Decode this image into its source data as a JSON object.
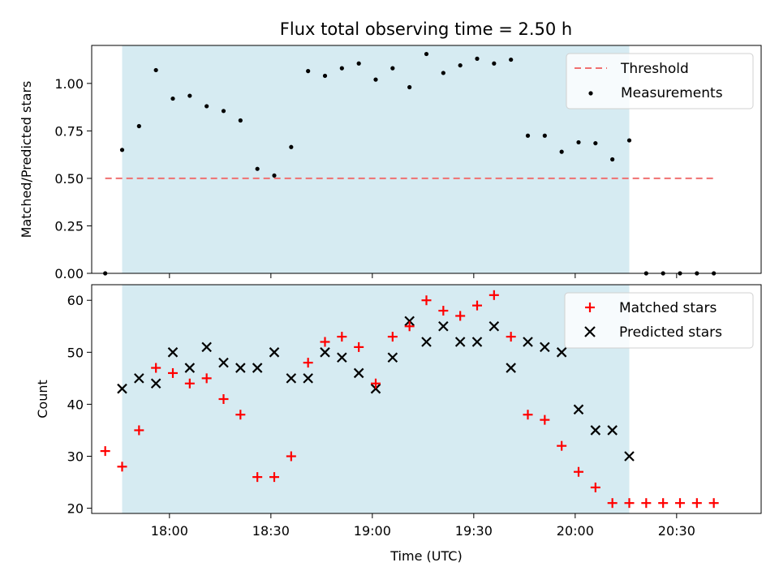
{
  "chart_data": [
    {
      "type": "scatter",
      "title": "Flux total observing time = 2.50 h",
      "ylabel": "Matched/Predicted stars",
      "xlabel": "",
      "xlim": [
        "17:37",
        "20:55"
      ],
      "ylim": [
        0.0,
        1.2
      ],
      "yticks": [
        "0.00",
        "0.25",
        "0.50",
        "0.75",
        "1.00"
      ],
      "xticks": [
        "18:00",
        "18:30",
        "19:00",
        "19:30",
        "20:00",
        "20:30"
      ],
      "shaded_interval": [
        "17:46",
        "20:16"
      ],
      "threshold": {
        "name": "Threshold",
        "value": 0.5,
        "x_range": [
          "17:41",
          "20:41"
        ],
        "color": "#f07070"
      },
      "legend_position": "top-right",
      "series": [
        {
          "name": "Measurements",
          "color": "#000000",
          "x": [
            "17:41",
            "17:46",
            "17:51",
            "17:56",
            "18:01",
            "18:06",
            "18:11",
            "18:16",
            "18:21",
            "18:26",
            "18:31",
            "18:36",
            "18:41",
            "18:46",
            "18:51",
            "18:56",
            "19:01",
            "19:06",
            "19:11",
            "19:16",
            "19:21",
            "19:26",
            "19:31",
            "19:36",
            "19:41",
            "19:46",
            "19:51",
            "19:56",
            "20:01",
            "20:06",
            "20:11",
            "20:16",
            "20:21",
            "20:26",
            "20:31",
            "20:36",
            "20:41"
          ],
          "y": [
            0.0,
            0.65,
            0.775,
            1.07,
            0.92,
            0.935,
            0.88,
            0.855,
            0.805,
            0.55,
            0.515,
            0.665,
            1.065,
            1.04,
            1.08,
            1.105,
            1.02,
            1.08,
            0.98,
            1.155,
            1.055,
            1.095,
            1.13,
            1.105,
            1.125,
            0.725,
            0.725,
            0.64,
            0.69,
            0.685,
            0.6,
            0.7,
            0.0,
            0.0,
            0.0,
            0.0,
            0.0
          ]
        }
      ]
    },
    {
      "type": "scatter",
      "title": "",
      "ylabel": "Count",
      "xlabel": "Time (UTC)",
      "xlim": [
        "17:37",
        "20:55"
      ],
      "ylim": [
        19,
        63
      ],
      "yticks": [
        "20",
        "30",
        "40",
        "50",
        "60"
      ],
      "xticks": [
        "18:00",
        "18:30",
        "19:00",
        "19:30",
        "20:00",
        "20:30"
      ],
      "shaded_interval": [
        "17:46",
        "20:16"
      ],
      "legend_position": "top-right",
      "series": [
        {
          "name": "Matched stars",
          "marker": "+",
          "color": "#ff0000",
          "x": [
            "17:41",
            "17:46",
            "17:51",
            "17:56",
            "18:01",
            "18:06",
            "18:11",
            "18:16",
            "18:21",
            "18:26",
            "18:31",
            "18:36",
            "18:41",
            "18:46",
            "18:51",
            "18:56",
            "19:01",
            "19:06",
            "19:11",
            "19:16",
            "19:21",
            "19:26",
            "19:31",
            "19:36",
            "19:41",
            "19:46",
            "19:51",
            "19:56",
            "20:01",
            "20:06",
            "20:11",
            "20:16",
            "20:21",
            "20:26",
            "20:31",
            "20:36",
            "20:41"
          ],
          "y": [
            31,
            28,
            35,
            47,
            46,
            44,
            45,
            41,
            38,
            26,
            26,
            30,
            48,
            52,
            53,
            51,
            44,
            53,
            55,
            60,
            58,
            57,
            59,
            61,
            53,
            38,
            37,
            32,
            27,
            24,
            21,
            21,
            21,
            21,
            21,
            21,
            21
          ]
        },
        {
          "name": "Predicted stars",
          "marker": "x",
          "color": "#000000",
          "x": [
            "17:46",
            "17:51",
            "17:56",
            "18:01",
            "18:06",
            "18:11",
            "18:16",
            "18:21",
            "18:26",
            "18:31",
            "18:36",
            "18:41",
            "18:46",
            "18:51",
            "18:56",
            "19:01",
            "19:06",
            "19:11",
            "19:16",
            "19:21",
            "19:26",
            "19:31",
            "19:36",
            "19:41",
            "19:46",
            "19:51",
            "19:56",
            "20:01",
            "20:06",
            "20:11",
            "20:16"
          ],
          "y": [
            43,
            45,
            44,
            50,
            47,
            51,
            48,
            47,
            47,
            50,
            45,
            45,
            50,
            49,
            46,
            43,
            49,
            56,
            52,
            55,
            52,
            52,
            55,
            47,
            52,
            51,
            50,
            39,
            35,
            35,
            30
          ]
        }
      ]
    }
  ]
}
